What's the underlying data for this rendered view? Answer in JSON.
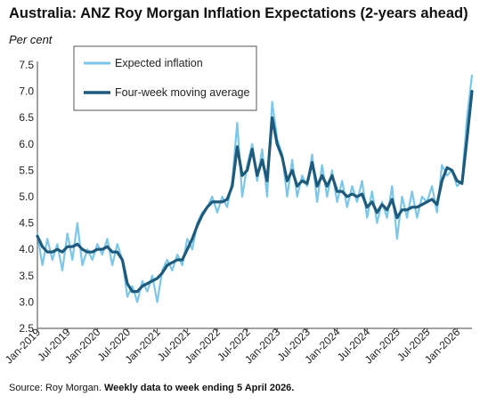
{
  "chart_data": {
    "type": "line",
    "title": "Australia: ANZ Roy Morgan Inflation Expectations (2-years ahead)",
    "ylabel": "Per cent",
    "ylim": [
      2.5,
      7.5
    ],
    "yticks": [
      "2.5",
      "3.0",
      "3.5",
      "4.0",
      "4.5",
      "5.0",
      "5.5",
      "6.0",
      "6.5",
      "7.0",
      "7.5"
    ],
    "xlim": [
      "2019-01",
      "2026-04"
    ],
    "xticks": [
      "Jan-2019",
      "Jul-2019",
      "Jan-2020",
      "Jul-2020",
      "Jan-2021",
      "Jul-2021",
      "Jan-2022",
      "Jul-2022",
      "Jan-2023",
      "Jul-2023",
      "Jan-2024",
      "Jul-2024",
      "Jan-2025",
      "Jul-2025",
      "Jan-2026"
    ],
    "grid": false,
    "legend": "top-left",
    "series": [
      {
        "name": "Expected inflation",
        "color": "#7cc6e8",
        "points": [
          [
            "2019-01",
            4.3
          ],
          [
            "2019-02",
            3.7
          ],
          [
            "2019-03",
            4.2
          ],
          [
            "2019-04",
            3.8
          ],
          [
            "2019-05",
            4.1
          ],
          [
            "2019-06",
            3.6
          ],
          [
            "2019-07",
            4.3
          ],
          [
            "2019-08",
            3.8
          ],
          [
            "2019-09",
            4.5
          ],
          [
            "2019-10",
            3.7
          ],
          [
            "2019-11",
            4.0
          ],
          [
            "2019-12",
            3.8
          ],
          [
            "2020-01",
            4.1
          ],
          [
            "2020-02",
            3.9
          ],
          [
            "2020-03",
            4.2
          ],
          [
            "2020-04",
            3.7
          ],
          [
            "2020-05",
            4.1
          ],
          [
            "2020-06",
            3.8
          ],
          [
            "2020-07",
            3.1
          ],
          [
            "2020-08",
            3.3
          ],
          [
            "2020-09",
            3.0
          ],
          [
            "2020-10",
            3.4
          ],
          [
            "2020-11",
            3.2
          ],
          [
            "2020-12",
            3.5
          ],
          [
            "2021-01",
            3.0
          ],
          [
            "2021-02",
            3.6
          ],
          [
            "2021-03",
            3.8
          ],
          [
            "2021-04",
            3.6
          ],
          [
            "2021-05",
            3.9
          ],
          [
            "2021-06",
            3.7
          ],
          [
            "2021-07",
            4.2
          ],
          [
            "2021-08",
            4.0
          ],
          [
            "2021-09",
            4.5
          ],
          [
            "2021-10",
            4.7
          ],
          [
            "2021-11",
            4.8
          ],
          [
            "2021-12",
            5.0
          ],
          [
            "2022-01",
            4.7
          ],
          [
            "2022-02",
            5.0
          ],
          [
            "2022-03",
            4.8
          ],
          [
            "2022-04",
            5.3
          ],
          [
            "2022-05",
            6.4
          ],
          [
            "2022-06",
            5.0
          ],
          [
            "2022-07",
            5.6
          ],
          [
            "2022-08",
            6.0
          ],
          [
            "2022-09",
            5.3
          ],
          [
            "2022-10",
            5.9
          ],
          [
            "2022-11",
            5.0
          ],
          [
            "2022-12",
            6.8
          ],
          [
            "2023-01",
            6.1
          ],
          [
            "2023-02",
            5.8
          ],
          [
            "2023-03",
            5.0
          ],
          [
            "2023-04",
            5.7
          ],
          [
            "2023-05",
            5.0
          ],
          [
            "2023-06",
            5.4
          ],
          [
            "2023-07",
            5.2
          ],
          [
            "2023-08",
            5.8
          ],
          [
            "2023-09",
            4.9
          ],
          [
            "2023-10",
            5.6
          ],
          [
            "2023-11",
            5.0
          ],
          [
            "2023-12",
            5.5
          ],
          [
            "2024-01",
            4.9
          ],
          [
            "2024-02",
            5.3
          ],
          [
            "2024-03",
            4.8
          ],
          [
            "2024-04",
            5.2
          ],
          [
            "2024-05",
            4.9
          ],
          [
            "2024-06",
            5.3
          ],
          [
            "2024-07",
            4.6
          ],
          [
            "2024-08",
            5.1
          ],
          [
            "2024-09",
            4.5
          ],
          [
            "2024-10",
            4.9
          ],
          [
            "2024-11",
            4.6
          ],
          [
            "2024-12",
            5.2
          ],
          [
            "2025-01",
            4.2
          ],
          [
            "2025-02",
            5.0
          ],
          [
            "2025-03",
            4.6
          ],
          [
            "2025-04",
            5.1
          ],
          [
            "2025-05",
            4.6
          ],
          [
            "2025-06",
            5.0
          ],
          [
            "2025-07",
            4.9
          ],
          [
            "2025-08",
            5.2
          ],
          [
            "2025-09",
            4.7
          ],
          [
            "2025-10",
            5.6
          ],
          [
            "2025-11",
            5.4
          ],
          [
            "2025-12",
            5.5
          ],
          [
            "2026-01",
            5.2
          ],
          [
            "2026-02",
            5.3
          ],
          [
            "2026-03",
            6.5
          ],
          [
            "2026-04",
            7.3
          ]
        ]
      },
      {
        "name": "Four-week moving average",
        "color": "#1d5a7c",
        "points": [
          [
            "2019-01",
            4.25
          ],
          [
            "2019-02",
            4.05
          ],
          [
            "2019-03",
            3.95
          ],
          [
            "2019-04",
            3.95
          ],
          [
            "2019-05",
            4.0
          ],
          [
            "2019-06",
            3.95
          ],
          [
            "2019-07",
            4.05
          ],
          [
            "2019-08",
            4.05
          ],
          [
            "2019-09",
            4.1
          ],
          [
            "2019-10",
            4.0
          ],
          [
            "2019-11",
            3.95
          ],
          [
            "2019-12",
            3.95
          ],
          [
            "2020-01",
            4.0
          ],
          [
            "2020-02",
            4.0
          ],
          [
            "2020-03",
            4.05
          ],
          [
            "2020-04",
            3.95
          ],
          [
            "2020-05",
            3.95
          ],
          [
            "2020-06",
            3.8
          ],
          [
            "2020-07",
            3.35
          ],
          [
            "2020-08",
            3.2
          ],
          [
            "2020-09",
            3.2
          ],
          [
            "2020-10",
            3.3
          ],
          [
            "2020-11",
            3.35
          ],
          [
            "2020-12",
            3.4
          ],
          [
            "2021-01",
            3.45
          ],
          [
            "2021-02",
            3.55
          ],
          [
            "2021-03",
            3.7
          ],
          [
            "2021-04",
            3.75
          ],
          [
            "2021-05",
            3.8
          ],
          [
            "2021-06",
            3.8
          ],
          [
            "2021-07",
            4.0
          ],
          [
            "2021-08",
            4.2
          ],
          [
            "2021-09",
            4.45
          ],
          [
            "2021-10",
            4.65
          ],
          [
            "2021-11",
            4.8
          ],
          [
            "2021-12",
            4.9
          ],
          [
            "2022-01",
            4.9
          ],
          [
            "2022-02",
            4.9
          ],
          [
            "2022-03",
            4.95
          ],
          [
            "2022-04",
            5.2
          ],
          [
            "2022-05",
            5.95
          ],
          [
            "2022-06",
            5.4
          ],
          [
            "2022-07",
            5.5
          ],
          [
            "2022-08",
            5.9
          ],
          [
            "2022-09",
            5.4
          ],
          [
            "2022-10",
            5.7
          ],
          [
            "2022-11",
            5.3
          ],
          [
            "2022-12",
            6.5
          ],
          [
            "2023-01",
            6.0
          ],
          [
            "2023-02",
            5.75
          ],
          [
            "2023-03",
            5.3
          ],
          [
            "2023-04",
            5.5
          ],
          [
            "2023-05",
            5.2
          ],
          [
            "2023-06",
            5.3
          ],
          [
            "2023-07",
            5.25
          ],
          [
            "2023-08",
            5.65
          ],
          [
            "2023-09",
            5.2
          ],
          [
            "2023-10",
            5.4
          ],
          [
            "2023-11",
            5.2
          ],
          [
            "2023-12",
            5.4
          ],
          [
            "2024-01",
            5.1
          ],
          [
            "2024-02",
            5.1
          ],
          [
            "2024-03",
            5.0
          ],
          [
            "2024-04",
            5.05
          ],
          [
            "2024-05",
            5.0
          ],
          [
            "2024-06",
            5.05
          ],
          [
            "2024-07",
            4.8
          ],
          [
            "2024-08",
            4.9
          ],
          [
            "2024-09",
            4.7
          ],
          [
            "2024-10",
            4.85
          ],
          [
            "2024-11",
            4.75
          ],
          [
            "2024-12",
            4.95
          ],
          [
            "2025-01",
            4.6
          ],
          [
            "2025-02",
            4.75
          ],
          [
            "2025-03",
            4.75
          ],
          [
            "2025-04",
            4.8
          ],
          [
            "2025-05",
            4.8
          ],
          [
            "2025-06",
            4.85
          ],
          [
            "2025-07",
            4.9
          ],
          [
            "2025-08",
            4.95
          ],
          [
            "2025-09",
            4.85
          ],
          [
            "2025-10",
            5.3
          ],
          [
            "2025-11",
            5.55
          ],
          [
            "2025-12",
            5.5
          ],
          [
            "2026-01",
            5.3
          ],
          [
            "2026-02",
            5.25
          ],
          [
            "2026-03",
            6.1
          ],
          [
            "2026-04",
            7.0
          ]
        ]
      }
    ],
    "source_prefix": "Source: Roy Morgan. ",
    "source_bold": "Weekly data to week ending 5 April 2026."
  }
}
